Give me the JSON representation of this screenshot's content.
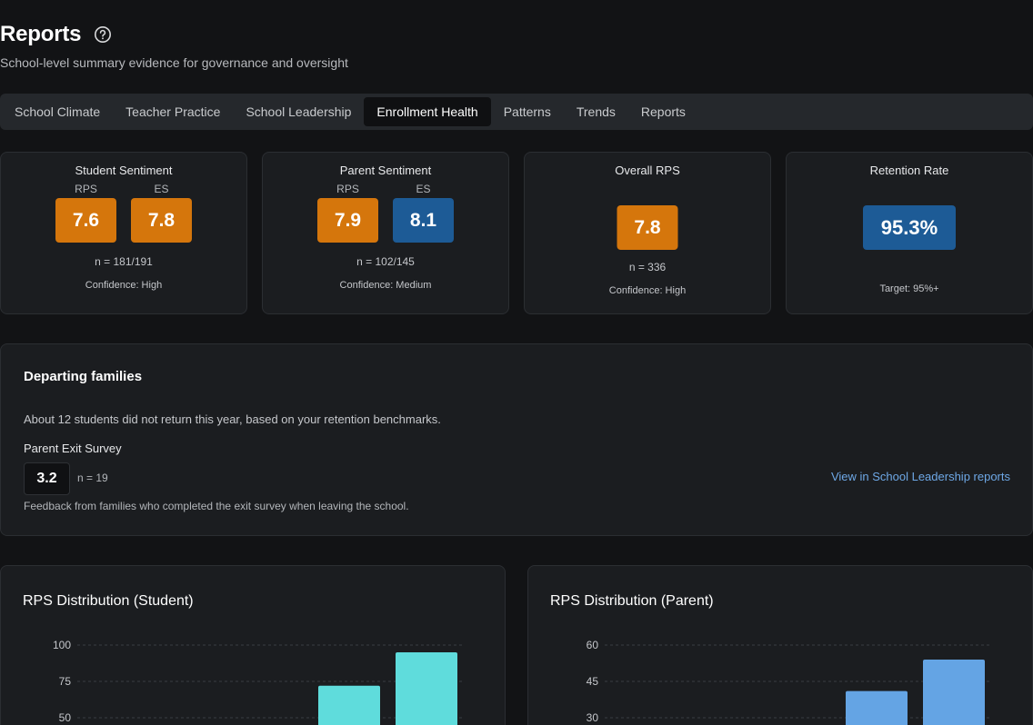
{
  "header": {
    "title": "Reports",
    "subtitle": "School-level summary evidence for governance and oversight",
    "help_icon": "help-circle-icon"
  },
  "tabs": [
    {
      "label": "School Climate",
      "active": false
    },
    {
      "label": "Teacher Practice",
      "active": false
    },
    {
      "label": "School Leadership",
      "active": false
    },
    {
      "label": "Enrollment Health",
      "active": true
    },
    {
      "label": "Patterns",
      "active": false
    },
    {
      "label": "Trends",
      "active": false
    },
    {
      "label": "Reports",
      "active": false
    }
  ],
  "metrics": {
    "student": {
      "title": "Student Sentiment",
      "rps_label": "RPS",
      "rps_value": "7.6",
      "es_label": "ES",
      "es_value": "7.8",
      "n": "n = 181/191",
      "confidence": "Confidence: High"
    },
    "parent": {
      "title": "Parent Sentiment",
      "rps_label": "RPS",
      "rps_value": "7.9",
      "es_label": "ES",
      "es_value": "8.1",
      "n": "n = 102/145",
      "confidence": "Confidence: Medium"
    },
    "overall": {
      "title": "Overall RPS",
      "value": "7.8",
      "n": "n = 336",
      "confidence": "Confidence: High"
    },
    "retention": {
      "title": "Retention Rate",
      "value": "95.3%",
      "target": "Target: 95%+"
    }
  },
  "departing": {
    "title": "Departing families",
    "text": "About 12 students did not return this year, based on your retention benchmarks.",
    "survey_label": "Parent Exit Survey",
    "survey_score": "3.2",
    "survey_n": "n = 19",
    "link": "View in School Leadership reports",
    "note": "Feedback from families who completed the exit survey when leaving the school."
  },
  "colors": {
    "orange": "#d5760c",
    "blue": "#1d5b96",
    "student_bar": "#5fdcdc",
    "parent_bar": "#64a4e4",
    "link": "#6ea8e6"
  },
  "chart_data": [
    {
      "type": "bar",
      "title": "RPS Distribution (Student)",
      "yticks": [
        100,
        75,
        50
      ],
      "ylim": [
        0,
        100
      ],
      "visible_values": [
        72,
        95
      ],
      "color": "#5fdcdc",
      "grid": true
    },
    {
      "type": "bar",
      "title": "RPS Distribution (Parent)",
      "yticks": [
        60,
        45,
        30
      ],
      "ylim": [
        0,
        60
      ],
      "visible_values": [
        41,
        54
      ],
      "color": "#64a4e4",
      "grid": true
    }
  ]
}
